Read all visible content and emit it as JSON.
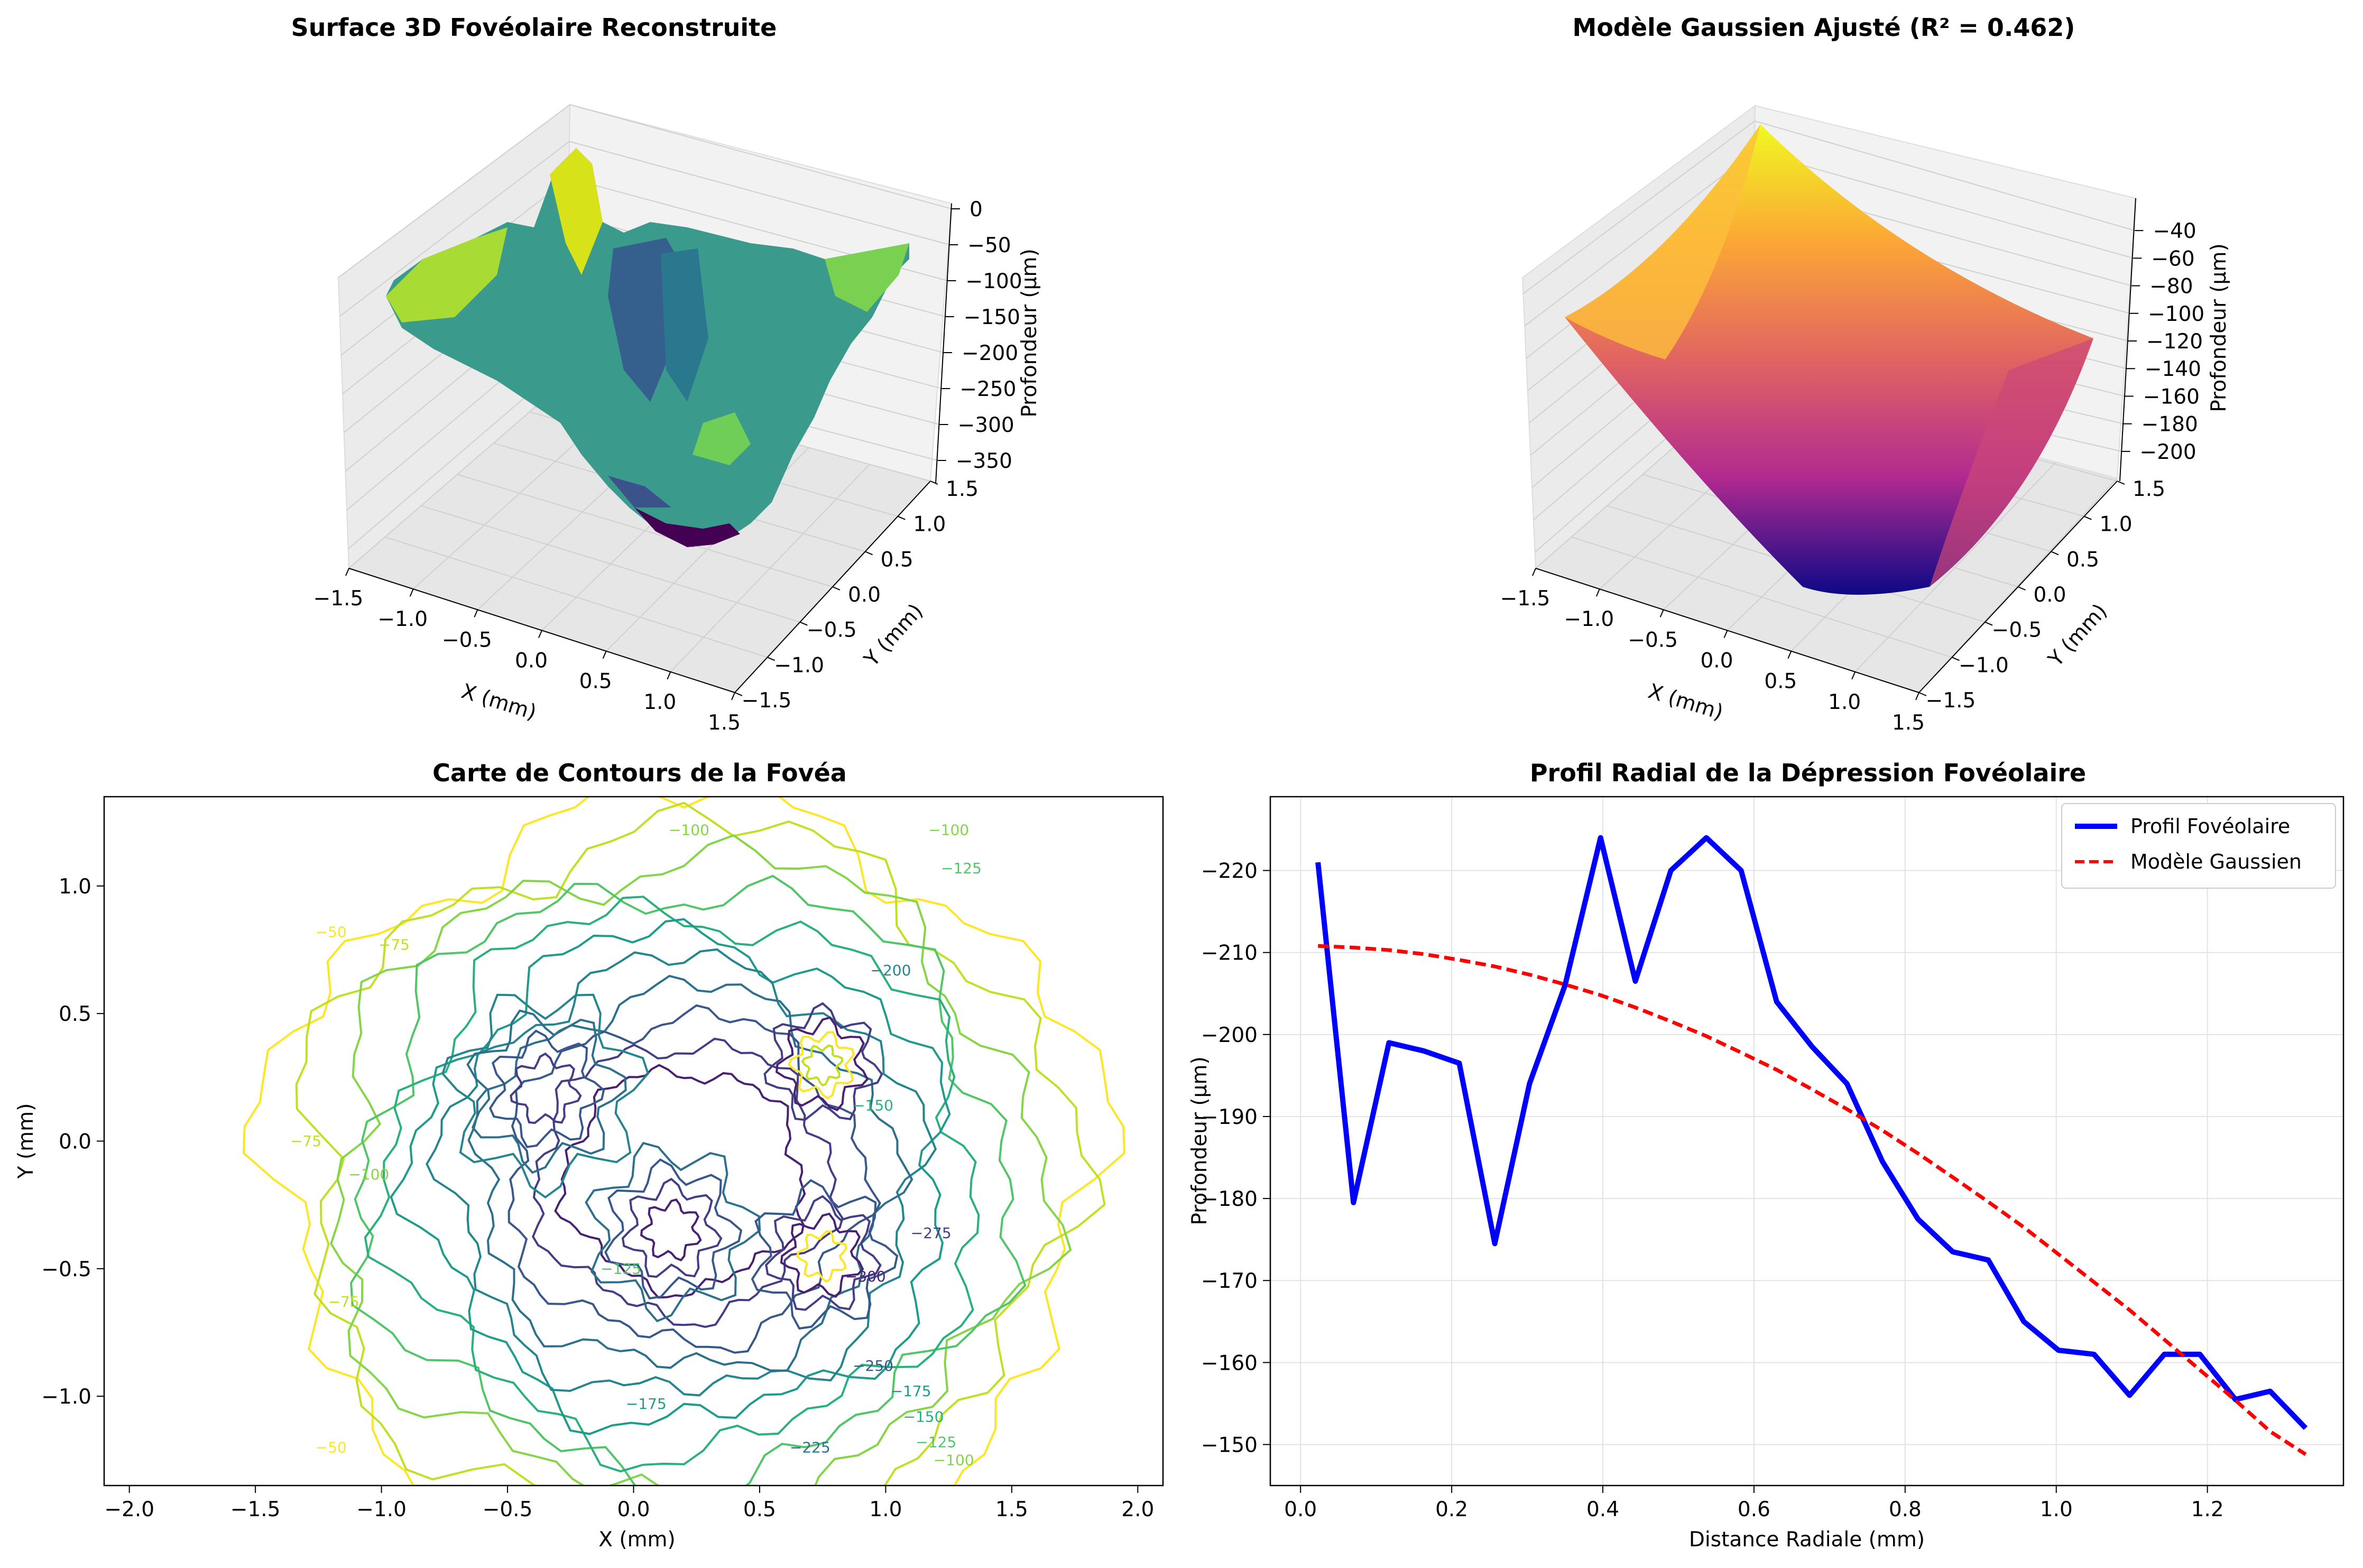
{
  "chart_data": [
    {
      "type": "surface3d",
      "title": "Surface 3D Fovéolaire Reconstruite",
      "xlabel": "X (mm)",
      "ylabel": "Y (mm)",
      "zlabel": "Profondeur (µm)",
      "xlim": [
        -1.5,
        1.5
      ],
      "ylim": [
        -1.5,
        1.5
      ],
      "zlim": [
        -375,
        0
      ],
      "xticks": [
        "−1.5",
        "−1.0",
        "−0.5",
        "0.0",
        "0.5",
        "1.0",
        "1.5"
      ],
      "yticks": [
        "−1.5",
        "−1.0",
        "−0.5",
        "0.0",
        "0.5",
        "1.0",
        "1.5"
      ],
      "zticks": [
        "0",
        "−50",
        "−100",
        "−150",
        "−200",
        "−250",
        "−300",
        "−350"
      ],
      "colormap": "viridis"
    },
    {
      "type": "surface3d",
      "title": "Modèle Gaussien Ajusté (R² = 0.462)",
      "xlabel": "X (mm)",
      "ylabel": "Y (mm)",
      "zlabel": "Profondeur (µm)",
      "xlim": [
        -1.5,
        1.5
      ],
      "ylim": [
        -1.5,
        1.5
      ],
      "zlim": [
        -210,
        -30
      ],
      "xticks": [
        "−1.5",
        "−1.0",
        "−0.5",
        "0.0",
        "0.5",
        "1.0",
        "1.5"
      ],
      "yticks": [
        "−1.5",
        "−1.0",
        "−0.5",
        "0.0",
        "0.5",
        "1.0",
        "1.5"
      ],
      "zticks": [
        "−40",
        "−60",
        "−80",
        "−100",
        "−120",
        "−140",
        "−160",
        "−180",
        "−200"
      ],
      "colormap": "plasma"
    },
    {
      "type": "contour",
      "title": "Carte de Contours de la Fovéa",
      "xlabel": "X (mm)",
      "ylabel": "Y (mm)",
      "xlim": [
        -2.1,
        2.1
      ],
      "ylim": [
        -1.35,
        1.35
      ],
      "xticks": [
        -2.0,
        -1.5,
        -1.0,
        -0.5,
        0.0,
        0.5,
        1.0,
        1.5,
        2.0
      ],
      "xtick_labels": [
        "−2.0",
        "−1.5",
        "−1.0",
        "−0.5",
        "0.0",
        "0.5",
        "1.0",
        "1.5",
        "2.0"
      ],
      "yticks": [
        -1.0,
        -0.5,
        0.0,
        0.5,
        1.0
      ],
      "ytick_labels": [
        "−1.0",
        "−0.5",
        "0.0",
        "0.5",
        "1.0"
      ],
      "levels": [
        -50,
        -75,
        -100,
        -125,
        -150,
        -175,
        -200,
        -225,
        -250,
        -275,
        -300
      ],
      "contour_labels": [
        {
          "text": "−100",
          "x": 0.22,
          "y": 1.2,
          "level": -100
        },
        {
          "text": "−100",
          "x": 1.25,
          "y": 1.2,
          "level": -100
        },
        {
          "text": "−125",
          "x": 1.3,
          "y": 1.05,
          "level": -125
        },
        {
          "text": "−50",
          "x": -1.2,
          "y": 0.8,
          "level": -50
        },
        {
          "text": "−75",
          "x": -0.95,
          "y": 0.75,
          "level": -75
        },
        {
          "text": "−200",
          "x": 1.02,
          "y": 0.65,
          "level": -200
        },
        {
          "text": "−75",
          "x": -1.3,
          "y": -0.02,
          "level": -75
        },
        {
          "text": "−100",
          "x": -1.05,
          "y": -0.15,
          "level": -100
        },
        {
          "text": "−150",
          "x": 0.95,
          "y": 0.12,
          "level": -150
        },
        {
          "text": "−275",
          "x": 1.18,
          "y": -0.38,
          "level": -275
        },
        {
          "text": "−300",
          "x": 0.92,
          "y": -0.55,
          "level": -300
        },
        {
          "text": "−125",
          "x": -0.05,
          "y": -0.52,
          "level": -125
        },
        {
          "text": "−75",
          "x": -1.15,
          "y": -0.65,
          "level": -75
        },
        {
          "text": "−250",
          "x": 0.95,
          "y": -0.9,
          "level": -250
        },
        {
          "text": "−175",
          "x": 1.1,
          "y": -1.0,
          "level": -175
        },
        {
          "text": "−150",
          "x": 1.15,
          "y": -1.1,
          "level": -150
        },
        {
          "text": "−125",
          "x": 1.2,
          "y": -1.2,
          "level": -125
        },
        {
          "text": "−100",
          "x": 1.27,
          "y": -1.27,
          "level": -100
        },
        {
          "text": "−175",
          "x": 0.05,
          "y": -1.05,
          "level": -175
        },
        {
          "text": "−225",
          "x": 0.7,
          "y": -1.22,
          "level": -225
        },
        {
          "text": "−50",
          "x": -1.2,
          "y": -1.22,
          "level": -50
        }
      ],
      "colormap": "viridis"
    },
    {
      "type": "line",
      "title": "Profil Radial de la Dépression Fovéolaire",
      "xlabel": "Distance Radiale (mm)",
      "ylabel": "Profondeur (µm)",
      "xlim": [
        -0.04,
        1.38
      ],
      "ylim": [
        -145,
        -229
      ],
      "xticks": [
        0.0,
        0.2,
        0.4,
        0.6,
        0.8,
        1.0,
        1.2
      ],
      "xtick_labels": [
        "0.0",
        "0.2",
        "0.4",
        "0.6",
        "0.8",
        "1.0",
        "1.2"
      ],
      "yticks": [
        -150,
        -160,
        -170,
        -180,
        -190,
        -200,
        -210,
        -220
      ],
      "ytick_labels": [
        "−150",
        "−160",
        "−170",
        "−180",
        "−190",
        "−200",
        "−210",
        "−220"
      ],
      "grid": true,
      "legend": "top-right",
      "series": [
        {
          "name": "Profil Fovéolaire",
          "color": "#0000ff",
          "style": "solid",
          "x": [
            0.023,
            0.07,
            0.117,
            0.163,
            0.21,
            0.257,
            0.303,
            0.35,
            0.397,
            0.443,
            0.49,
            0.537,
            0.583,
            0.63,
            0.677,
            0.723,
            0.77,
            0.817,
            0.863,
            0.91,
            0.957,
            1.003,
            1.05,
            1.097,
            1.143,
            1.19,
            1.237,
            1.283,
            1.33
          ],
          "y": [
            -221,
            -179.5,
            -199,
            -198,
            -196.5,
            -174.5,
            -194,
            -206,
            -224,
            -206.5,
            -220,
            -224,
            -220,
            -204,
            -198.5,
            -194,
            -184.5,
            -177.5,
            -173.5,
            -172.5,
            -165,
            -161.5,
            -161,
            -156,
            -161,
            -161,
            -155.5,
            -156.5,
            -152
          ]
        },
        {
          "name": "Modèle Gaussien",
          "color": "#ff0000",
          "style": "dashed",
          "x": [
            0.023,
            0.07,
            0.117,
            0.163,
            0.21,
            0.257,
            0.303,
            0.35,
            0.397,
            0.443,
            0.49,
            0.537,
            0.583,
            0.63,
            0.677,
            0.723,
            0.77,
            0.817,
            0.863,
            0.91,
            0.957,
            1.003,
            1.05,
            1.097,
            1.143,
            1.19,
            1.237,
            1.283,
            1.33
          ],
          "y": [
            -210.8,
            -210.6,
            -210.3,
            -209.8,
            -209.1,
            -208.3,
            -207.3,
            -206.1,
            -204.8,
            -203.3,
            -201.6,
            -199.8,
            -197.8,
            -195.7,
            -193.3,
            -190.9,
            -188.3,
            -185.5,
            -182.6,
            -179.6,
            -176.5,
            -173.2,
            -169.8,
            -166.4,
            -162.8,
            -159.1,
            -155.4,
            -151.6,
            -148.8
          ]
        }
      ]
    }
  ]
}
